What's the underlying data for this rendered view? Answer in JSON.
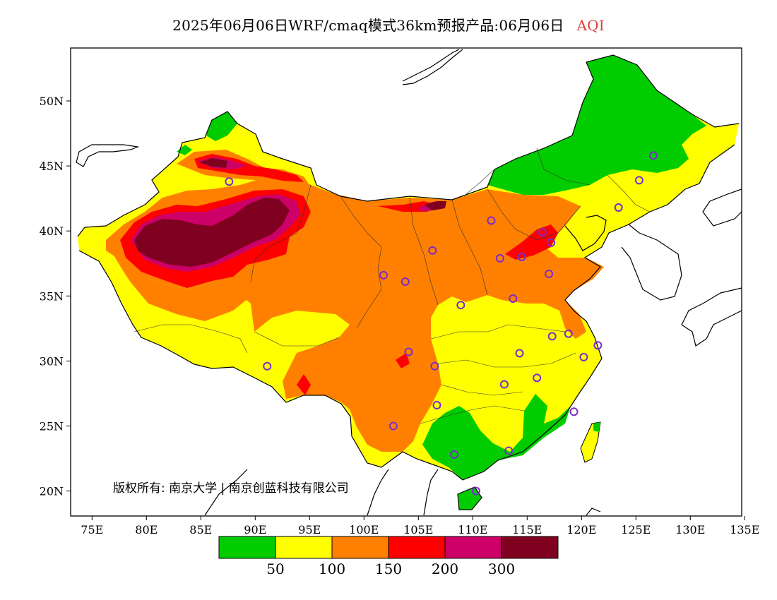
{
  "title": {
    "main": "2025年06月06日WRF/cmaq模式36km预报产品:06月06日",
    "variable": "AQI",
    "variable_color": "#e0403a"
  },
  "copyright": "版权所有: 南京大学 | 南京创蓝科技有限公司",
  "axes": {
    "lat_ticks": [
      "50N",
      "45N",
      "40N",
      "35N",
      "30N",
      "25N",
      "20N"
    ],
    "lon_ticks": [
      "75E",
      "80E",
      "85E",
      "90E",
      "95E",
      "100E",
      "105E",
      "110E",
      "115E",
      "120E",
      "125E",
      "130E",
      "135E"
    ],
    "lon_range": [
      73,
      135
    ],
    "lat_range": [
      18,
      54
    ]
  },
  "legend": {
    "colors": [
      "#00cc00",
      "#ffff00",
      "#ff8000",
      "#ff0000",
      "#cc0066",
      "#800020"
    ],
    "labels": [
      "50",
      "100",
      "150",
      "200",
      "300"
    ]
  },
  "stations": [
    {
      "lon": 87.6,
      "lat": 43.8
    },
    {
      "lon": 91.1,
      "lat": 29.6
    },
    {
      "lon": 101.8,
      "lat": 36.6
    },
    {
      "lon": 103.8,
      "lat": 36.1
    },
    {
      "lon": 106.3,
      "lat": 38.5
    },
    {
      "lon": 111.7,
      "lat": 40.8
    },
    {
      "lon": 116.4,
      "lat": 39.9
    },
    {
      "lon": 117.2,
      "lat": 39.1
    },
    {
      "lon": 114.5,
      "lat": 38.0
    },
    {
      "lon": 112.5,
      "lat": 37.9
    },
    {
      "lon": 117.0,
      "lat": 36.7
    },
    {
      "lon": 113.7,
      "lat": 34.8
    },
    {
      "lon": 108.9,
      "lat": 34.3
    },
    {
      "lon": 104.1,
      "lat": 30.7
    },
    {
      "lon": 106.5,
      "lat": 29.6
    },
    {
      "lon": 106.7,
      "lat": 26.6
    },
    {
      "lon": 102.7,
      "lat": 25.0
    },
    {
      "lon": 108.3,
      "lat": 22.8
    },
    {
      "lon": 113.3,
      "lat": 23.1
    },
    {
      "lon": 110.3,
      "lat": 20.0
    },
    {
      "lon": 112.9,
      "lat": 28.2
    },
    {
      "lon": 114.3,
      "lat": 30.6
    },
    {
      "lon": 115.9,
      "lat": 28.7
    },
    {
      "lon": 117.3,
      "lat": 31.9
    },
    {
      "lon": 118.8,
      "lat": 32.1
    },
    {
      "lon": 120.2,
      "lat": 30.3
    },
    {
      "lon": 121.5,
      "lat": 31.2
    },
    {
      "lon": 119.3,
      "lat": 26.1
    },
    {
      "lon": 123.4,
      "lat": 41.8
    },
    {
      "lon": 125.3,
      "lat": 43.9
    },
    {
      "lon": 126.6,
      "lat": 45.8
    }
  ]
}
